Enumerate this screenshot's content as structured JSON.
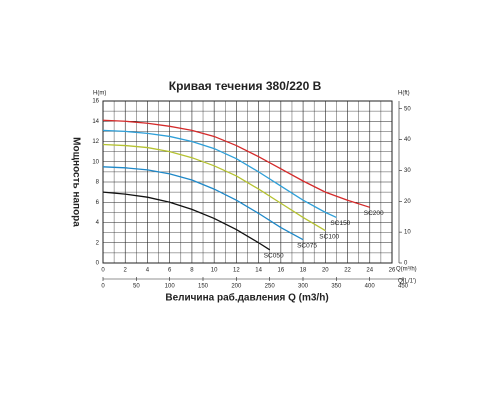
{
  "chart_data": {
    "type": "line",
    "title": "Кривая течения 380/220 В",
    "y_label": "Мощность напора",
    "x_label": "Величина раб.давления Q (m3/h)",
    "y_unit": "H(m)",
    "y2_unit": "H(ft)",
    "x_unit": "Q(m³/h)",
    "x2_unit": "Q(L/1')",
    "xlim": [
      0,
      26
    ],
    "xticks": [
      0,
      2,
      4,
      6,
      8,
      10,
      12,
      14,
      16,
      18,
      20,
      22,
      24,
      26
    ],
    "x2lim": [
      0,
      450
    ],
    "x2ticks": [
      0,
      50,
      100,
      150,
      200,
      250,
      300,
      350,
      400,
      450
    ],
    "ylim": [
      0,
      16
    ],
    "yticks": [
      0,
      2,
      4,
      6,
      8,
      10,
      12,
      14,
      16
    ],
    "y2lim": [
      0,
      52.5
    ],
    "y2ticks": [
      0,
      10,
      20,
      30,
      40,
      50
    ],
    "grid": true,
    "series": [
      {
        "name": "SC050",
        "color": "#111111",
        "label_color": "#d42a2a",
        "x": [
          0,
          2,
          4,
          6,
          8,
          10,
          12,
          14,
          15
        ],
        "values": [
          7,
          6.8,
          6.5,
          6,
          5.3,
          4.4,
          3.3,
          2,
          1.3
        ]
      },
      {
        "name": "SC075",
        "color": "#1e88c8",
        "label_color": "#1e88c8",
        "x": [
          0,
          2,
          4,
          6,
          8,
          10,
          12,
          14,
          16,
          18
        ],
        "values": [
          9.5,
          9.4,
          9.2,
          8.8,
          8.2,
          7.3,
          6.2,
          4.9,
          3.5,
          2.3
        ]
      },
      {
        "name": "SC100",
        "color": "#b5c230",
        "label_color": "#b5c230",
        "x": [
          0,
          2,
          4,
          6,
          8,
          10,
          12,
          14,
          16,
          18,
          20
        ],
        "values": [
          11.7,
          11.6,
          11.4,
          11,
          10.4,
          9.6,
          8.6,
          7.3,
          5.9,
          4.5,
          3.2
        ]
      },
      {
        "name": "SC150",
        "color": "#2e9fd8",
        "label_color": "#2e9fd8",
        "x": [
          0,
          2,
          4,
          6,
          8,
          10,
          12,
          14,
          16,
          18,
          20,
          21
        ],
        "values": [
          13.1,
          13,
          12.8,
          12.5,
          12,
          11.3,
          10.3,
          9,
          7.6,
          6.2,
          5,
          4.5
        ]
      },
      {
        "name": "SC200",
        "color": "#d42a2a",
        "label_color": "#d42a2a",
        "x": [
          0,
          2,
          4,
          6,
          8,
          10,
          12,
          14,
          16,
          18,
          20,
          22,
          24
        ],
        "values": [
          14.1,
          14,
          13.8,
          13.5,
          13.1,
          12.5,
          11.6,
          10.5,
          9.3,
          8.1,
          7,
          6.2,
          5.5
        ]
      }
    ]
  }
}
